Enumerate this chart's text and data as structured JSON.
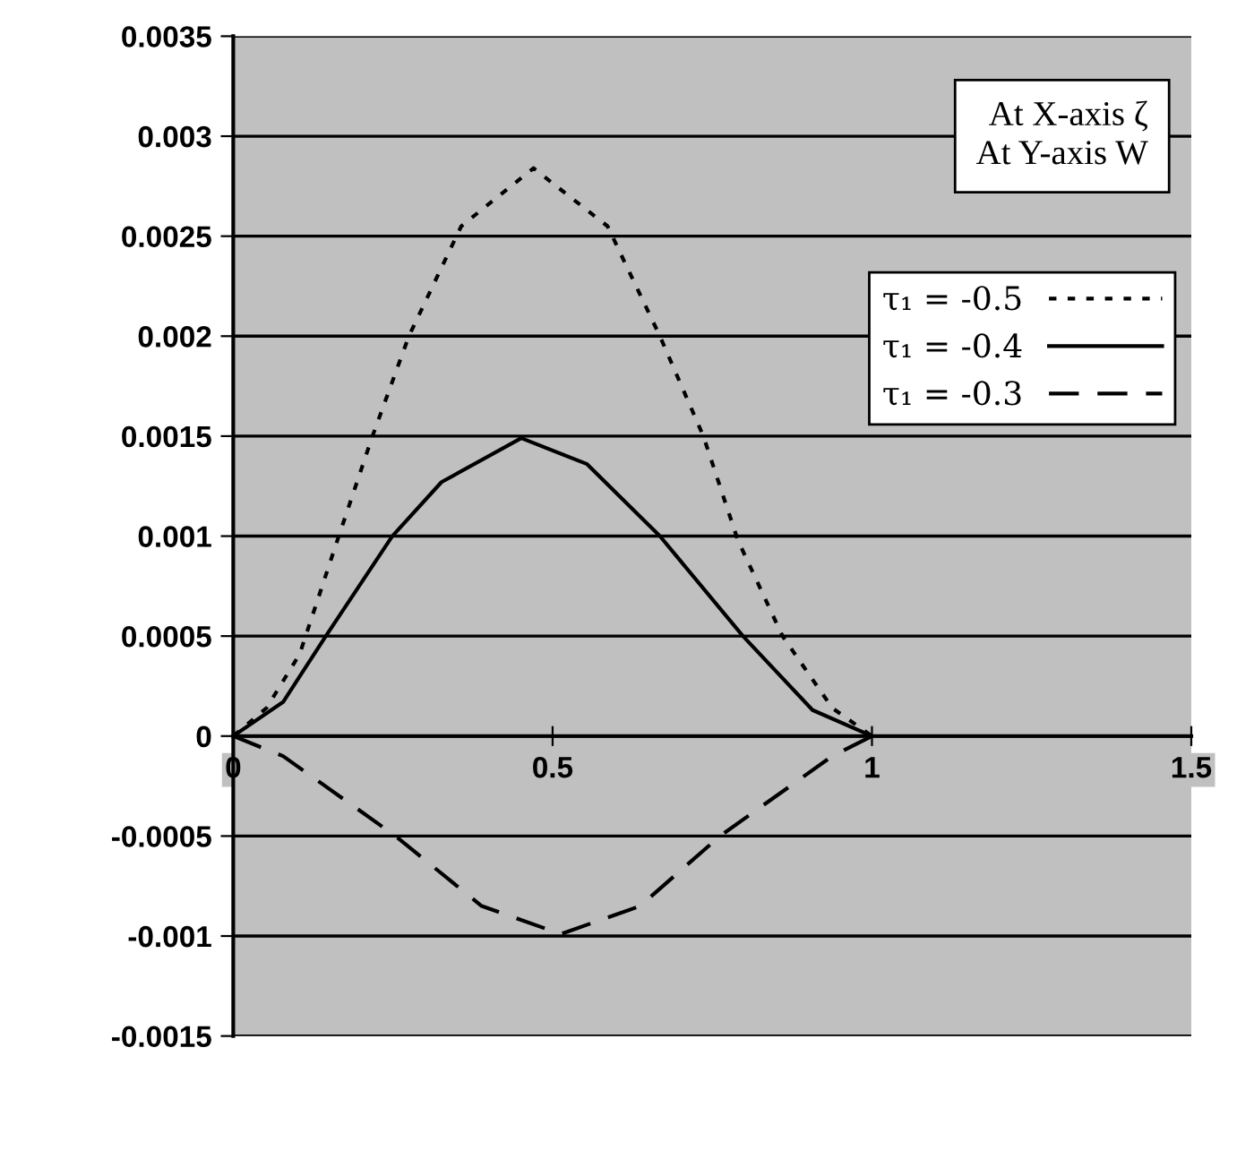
{
  "chart_data": {
    "type": "line",
    "xlim": [
      0,
      1.5
    ],
    "xticks": [
      0,
      0.5,
      1,
      1.5
    ],
    "ylim": [
      -0.0015,
      0.0035
    ],
    "yticks": [
      -0.0015,
      -0.001,
      -0.0005,
      0,
      0.0005,
      0.001,
      0.0015,
      0.002,
      0.0025,
      0.003,
      0.0035
    ],
    "grid": "y",
    "legend": "top right",
    "annotations": [
      "At X-axis ζ\nAt Y-axis W"
    ],
    "series": [
      {
        "name": "τ₁ = -0.5",
        "color": "#000000",
        "line_style": "dotted",
        "x": [
          0,
          0.052,
          0.104,
          0.16,
          0.218,
          0.275,
          0.357,
          0.47,
          0.586,
          0.668,
          0.736,
          0.79,
          0.86,
          0.938,
          1
        ],
        "values": [
          0,
          0.00014,
          0.00041,
          0.00095,
          0.0015,
          0.002,
          0.00255,
          0.00284,
          0.00255,
          0.002,
          0.0015,
          0.00098,
          0.0005,
          0.00014,
          0
        ]
      },
      {
        "name": "τ₁ = -0.4",
        "color": "#000000",
        "line_style": "solid",
        "x": [
          0,
          0.078,
          0.145,
          0.249,
          0.326,
          0.451,
          0.554,
          0.668,
          0.798,
          0.907,
          1
        ],
        "values": [
          0,
          0.00017,
          0.0005,
          0.001,
          0.00127,
          0.00149,
          0.00136,
          0.001,
          0.0005,
          0.00013,
          0
        ]
      },
      {
        "name": "τ₁ = -0.3",
        "color": "#000000",
        "line_style": "dashed",
        "x": [
          0,
          0.078,
          0.254,
          0.389,
          0.513,
          0.637,
          0.762,
          0.938,
          1
        ],
        "values": [
          0,
          -0.0001,
          -0.0005,
          -0.00085,
          -0.00099,
          -0.00085,
          -0.0005,
          -0.0001,
          0
        ]
      }
    ]
  }
}
